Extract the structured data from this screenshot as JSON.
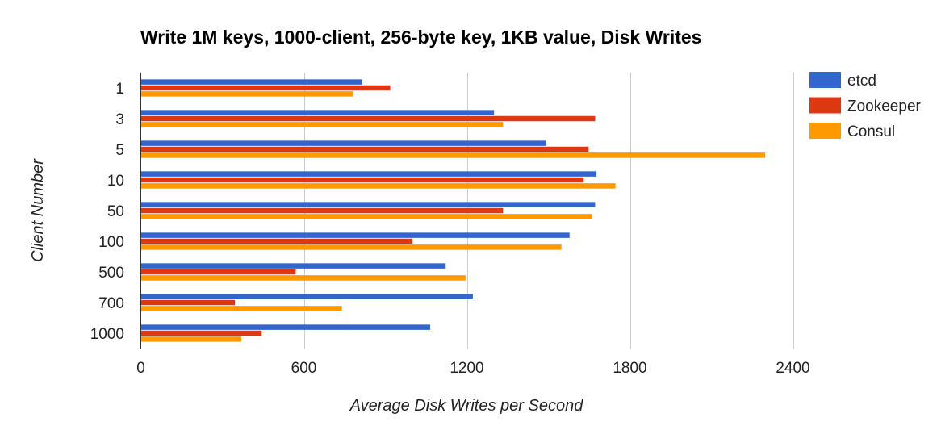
{
  "chart_data": {
    "type": "bar",
    "orientation": "horizontal",
    "title": "Write 1M keys, 1000-client, 256-byte key, 1KB value, Disk Writes",
    "xlabel": "Average Disk Writes per Second",
    "ylabel": "Client Number",
    "xlim": [
      0,
      2400
    ],
    "xticks": [
      "0",
      "600",
      "1200",
      "1800",
      "2400"
    ],
    "grid": true,
    "legend_position": "right",
    "categories": [
      "1",
      "3",
      "5",
      "10",
      "50",
      "100",
      "500",
      "700",
      "1000"
    ],
    "series": [
      {
        "name": "etcd",
        "color": "#3366cc",
        "values": [
          815,
          1300,
          1492,
          1677,
          1672,
          1578,
          1122,
          1222,
          1065
        ]
      },
      {
        "name": "Zookeeper",
        "color": "#dc3912",
        "values": [
          918,
          1672,
          1648,
          1630,
          1333,
          1000,
          570,
          346,
          445
        ]
      },
      {
        "name": "Consul",
        "color": "#ff9900",
        "values": [
          780,
          1333,
          2298,
          1747,
          1660,
          1548,
          1195,
          740,
          370
        ]
      }
    ]
  }
}
